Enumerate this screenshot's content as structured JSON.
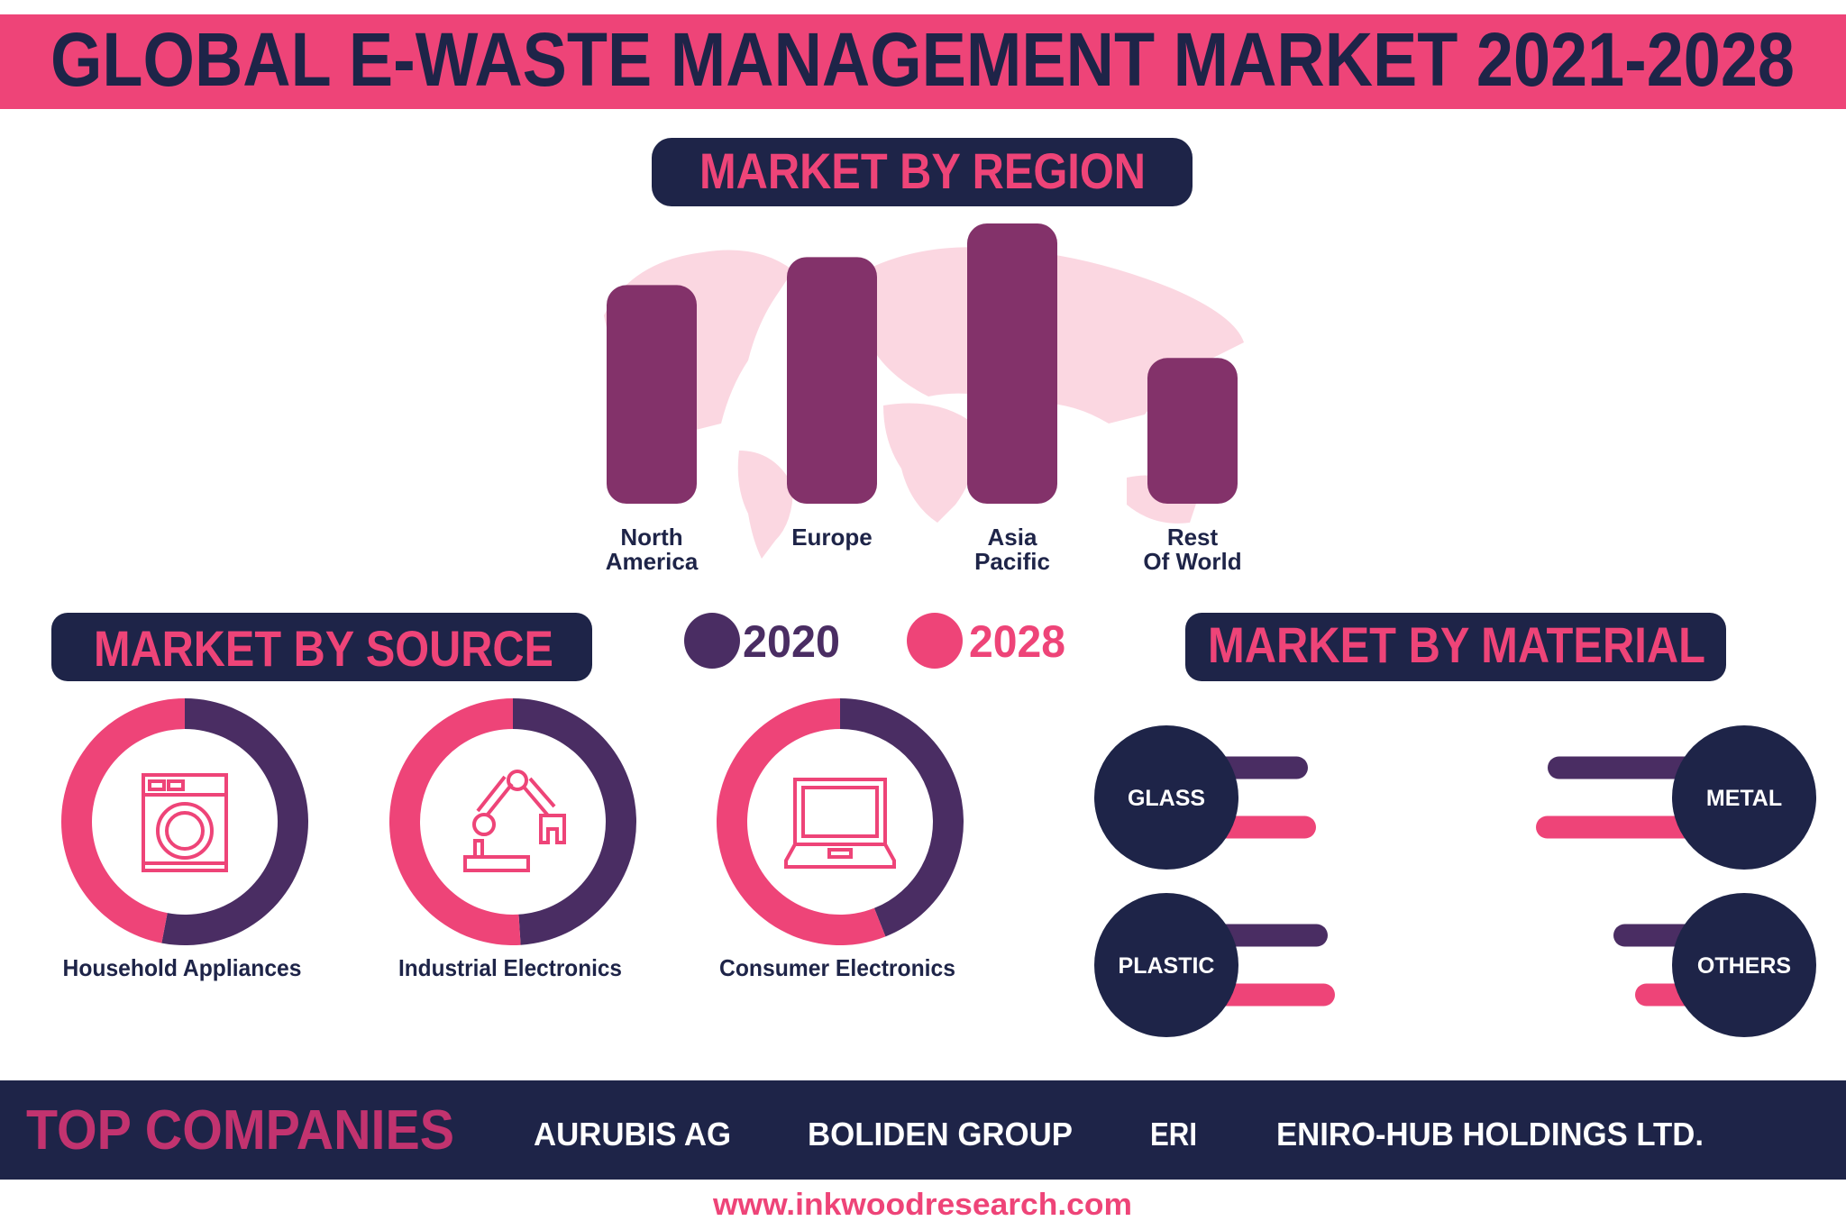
{
  "title": "GLOBAL E-WASTE MANAGEMENT MARKET 2021-2028",
  "colors": {
    "pink": "#ee4478",
    "navy": "#1e2448",
    "bar_purple": "#83326a",
    "series_2020": "#4a2d63",
    "series_2028": "#ee4478",
    "map": "#fbd7e1"
  },
  "region": {
    "heading": "MARKET BY REGION",
    "chart_data": {
      "type": "bar",
      "categories": [
        "North America",
        "Europe",
        "Asia Pacific",
        "Rest Of World"
      ],
      "labels": [
        [
          "North",
          "America"
        ],
        [
          "Europe",
          ""
        ],
        [
          "Asia",
          "Pacific"
        ],
        [
          "Rest",
          "Of World"
        ]
      ],
      "values": [
        78,
        88,
        100,
        52
      ],
      "note_scale": "relative, no axis printed"
    }
  },
  "legend": {
    "items": [
      {
        "label": "2020",
        "color": "#4a2d63"
      },
      {
        "label": "2028",
        "color": "#ee4478"
      }
    ]
  },
  "source": {
    "heading": "MARKET BY SOURCE",
    "chart_data": {
      "type": "pie",
      "items": [
        {
          "label": "Household Appliances",
          "icon": "washing-machine-icon",
          "share_2020": 0.53,
          "share_2028": 0.47
        },
        {
          "label": "Industrial Electronics",
          "icon": "robotic-arm-icon",
          "share_2020": 0.49,
          "share_2028": 0.51
        },
        {
          "label": "Consumer Electronics",
          "icon": "laptop-icon",
          "share_2020": 0.44,
          "share_2028": 0.56
        }
      ]
    }
  },
  "material": {
    "heading": "MARKET BY MATERIAL",
    "chart_data": {
      "type": "bar",
      "items": [
        {
          "label": "GLASS",
          "side": "left",
          "v2020": 157,
          "v2028": 166
        },
        {
          "label": "METAL",
          "side": "right",
          "v2020": 218,
          "v2028": 231
        },
        {
          "label": "PLASTIC",
          "side": "left",
          "v2020": 179,
          "v2028": 187
        },
        {
          "label": "OTHERS",
          "side": "right",
          "v2020": 145,
          "v2028": 121
        }
      ]
    }
  },
  "companies": {
    "heading": "TOP COMPANIES",
    "items": [
      "AURUBIS AG",
      "BOLIDEN GROUP",
      "ERI",
      "ENIRO-HUB HOLDINGS LTD."
    ]
  },
  "footer": {
    "url": "www.inkwoodresearch.com"
  }
}
